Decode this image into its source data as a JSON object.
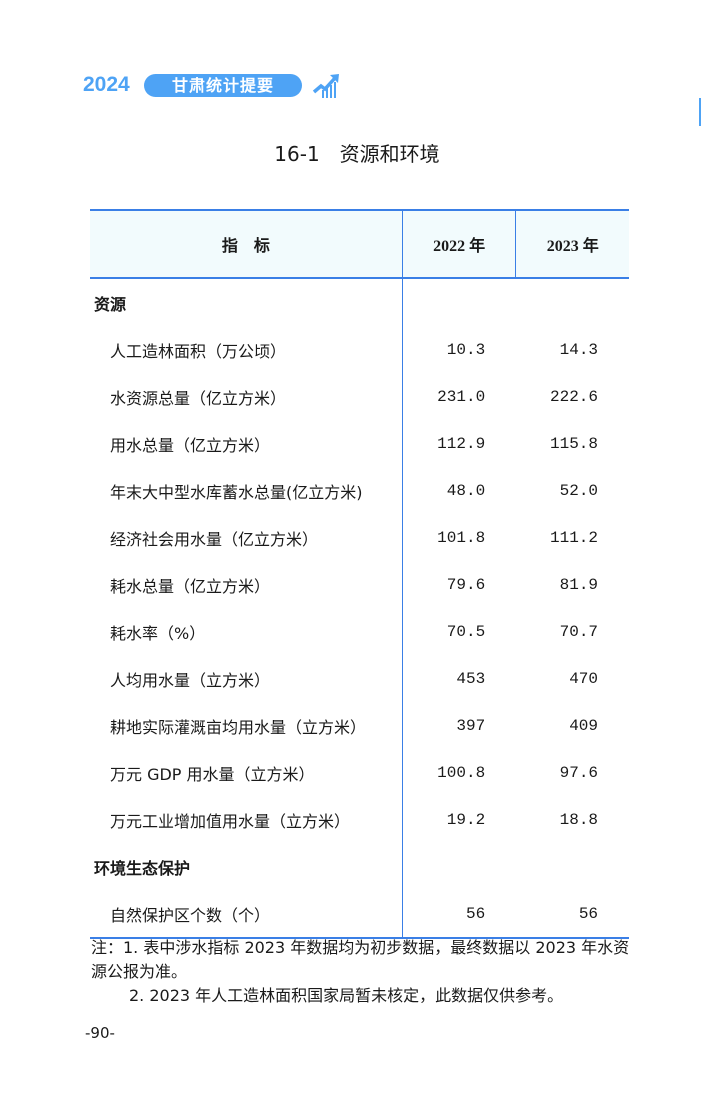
{
  "header": {
    "year": "2024",
    "book_title": "甘肃统计提要",
    "icon": "trend-chart-icon",
    "accent": "#4ea3f5"
  },
  "title": "16-1　资源和环境",
  "table": {
    "columns": [
      "指　标",
      "2022 年",
      "2023 年"
    ],
    "rows": [
      {
        "label": "资源",
        "section": true,
        "v2022": "",
        "v2023": ""
      },
      {
        "label": "人工造林面积（万公顷）",
        "v2022": "10.3",
        "v2023": "14.3"
      },
      {
        "label": "水资源总量（亿立方米）",
        "v2022": "231.0",
        "v2023": "222.6"
      },
      {
        "label": "用水总量（亿立方米）",
        "v2022": "112.9",
        "v2023": "115.8"
      },
      {
        "label": "年末大中型水库蓄水总量(亿立方米)",
        "v2022": "48.0",
        "v2023": "52.0"
      },
      {
        "label": "经济社会用水量（亿立方米）",
        "v2022": "101.8",
        "v2023": "111.2"
      },
      {
        "label": "耗水总量（亿立方米）",
        "v2022": "79.6",
        "v2023": "81.9"
      },
      {
        "label": "耗水率（%）",
        "v2022": "70.5",
        "v2023": "70.7"
      },
      {
        "label": "人均用水量（立方米）",
        "v2022": "453",
        "v2023": "470"
      },
      {
        "label": "耕地实际灌溉亩均用水量（立方米）",
        "v2022": "397",
        "v2023": "409"
      },
      {
        "label": "万元 GDP 用水量（立方米）",
        "v2022": "100.8",
        "v2023": "97.6"
      },
      {
        "label": "万元工业增加值用水量（立方米）",
        "v2022": "19.2",
        "v2023": "18.8"
      },
      {
        "label": "环境生态保护",
        "section": true,
        "v2022": "",
        "v2023": ""
      },
      {
        "label": "自然保护区个数（个）",
        "v2022": "56",
        "v2023": "56"
      }
    ]
  },
  "notes": {
    "note1": "注：1. 表中涉水指标 2023 年数据均为初步数据，最终数据以 2023 年水资源公报为准。",
    "note2": "2. 2023 年人工造林面积国家局暂未核定，此数据仅供参考。"
  },
  "page_number": "-90-"
}
